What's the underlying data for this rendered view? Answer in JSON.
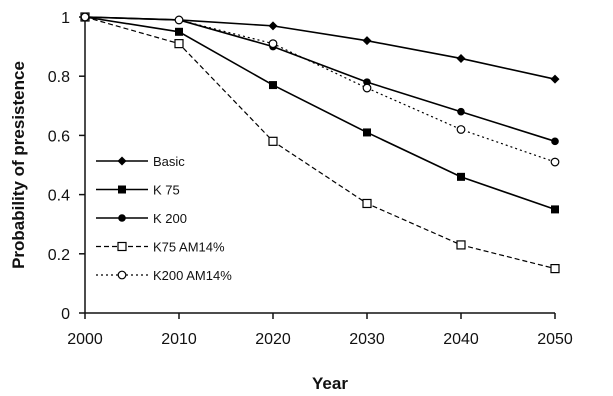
{
  "chart_data": {
    "type": "line",
    "xlabel": "Year",
    "ylabel": "Probability of presistence",
    "xlim": [
      2000,
      2050
    ],
    "ylim": [
      0,
      1
    ],
    "x_ticks": [
      "2000",
      "2010",
      "2020",
      "2030",
      "2040",
      "2050"
    ],
    "y_ticks": [
      "0",
      "0.2",
      "0.4",
      "0.6",
      "0.8",
      "1"
    ],
    "x": [
      2000,
      2010,
      2020,
      2030,
      2040,
      2050
    ],
    "legend_position": "left",
    "grid": false,
    "series": [
      {
        "name": "Basic",
        "values": [
          1.0,
          0.99,
          0.97,
          0.92,
          0.86,
          0.79
        ],
        "marker": "diamond",
        "dash": "solid",
        "color": "#000000"
      },
      {
        "name": "K 75",
        "values": [
          1.0,
          0.95,
          0.77,
          0.61,
          0.46,
          0.35
        ],
        "marker": "square-filled",
        "dash": "solid",
        "color": "#000000"
      },
      {
        "name": "K 200",
        "values": [
          1.0,
          0.99,
          0.9,
          0.78,
          0.68,
          0.58
        ],
        "marker": "circle-filled",
        "dash": "solid",
        "color": "#000000"
      },
      {
        "name": "K75 AM14%",
        "values": [
          1.0,
          0.91,
          0.58,
          0.37,
          0.23,
          0.15
        ],
        "marker": "square-open",
        "dash": "dashed",
        "color": "#000000"
      },
      {
        "name": "K200 AM14%",
        "values": [
          1.0,
          0.99,
          0.91,
          0.76,
          0.62,
          0.51
        ],
        "marker": "circle-open",
        "dash": "dotted",
        "color": "#000000"
      }
    ]
  }
}
